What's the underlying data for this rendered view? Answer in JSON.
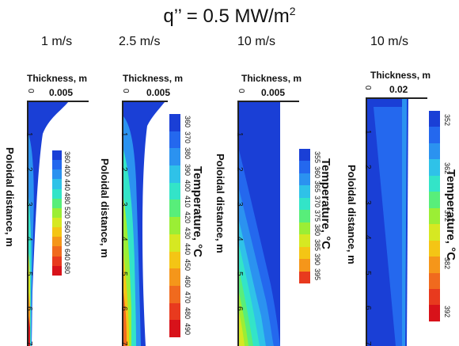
{
  "title": {
    "main": "q’’ = 0.5 MW/m",
    "sup": "2"
  },
  "chart_data": [
    {
      "type": "heatmap",
      "velocity": "1 m/s",
      "xlabel": "Thickness, m",
      "ylabel": "Poloidal distance, m",
      "x_ticks": [
        "0",
        "0.005"
      ],
      "y_ticks": [
        "1",
        "2",
        "3",
        "4",
        "5",
        "6",
        "7"
      ],
      "colorbar": {
        "title": "",
        "ticks": [
          "360",
          "400",
          "440",
          "480",
          "520",
          "560",
          "600",
          "640",
          "680"
        ],
        "range": [
          340,
          700
        ]
      },
      "colors": [
        "#1a3fd6",
        "#2468ee",
        "#2b92f0",
        "#2fc2e8",
        "#33e4c8",
        "#58ee7a",
        "#9bee35",
        "#d6e822",
        "#f4c515",
        "#f5961a",
        "#f06a1e",
        "#e83a1e",
        "#d8121a"
      ]
    },
    {
      "type": "heatmap",
      "velocity": "2.5 m/s",
      "xlabel": "Thickness, m",
      "ylabel": "Poloidal distance, m",
      "x_ticks": [
        "0",
        "0.005"
      ],
      "y_ticks": [
        "1",
        "2",
        "3",
        "4",
        "5",
        "6",
        "7"
      ],
      "colorbar": {
        "title": "Temperature, °C",
        "ticks": [
          "360",
          "370",
          "380",
          "390",
          "400",
          "410",
          "420",
          "430",
          "440",
          "450",
          "460",
          "470",
          "480",
          "490"
        ],
        "range": [
          355,
          495
        ]
      },
      "colors": [
        "#1a3fd6",
        "#2468ee",
        "#2b92f0",
        "#2fc2e8",
        "#33e4c8",
        "#58ee7a",
        "#9bee35",
        "#d6e822",
        "#f4c515",
        "#f5961a",
        "#f06a1e",
        "#e83a1e",
        "#d8121a"
      ]
    },
    {
      "type": "heatmap",
      "velocity": "10 m/s",
      "xlabel": "Thickness, m",
      "ylabel": "Poloidal distance, m",
      "x_ticks": [
        "0",
        "0.005"
      ],
      "y_ticks": [
        "1",
        "2",
        "3",
        "4",
        "5",
        "6"
      ],
      "colorbar": {
        "title": "Temperature, °C",
        "ticks": [
          "355",
          "360",
          "365",
          "370",
          "375",
          "380",
          "385",
          "390",
          "395"
        ],
        "range": [
          352,
          398
        ]
      },
      "colors": [
        "#1a3fd6",
        "#2468ee",
        "#2b92f0",
        "#2fc2e8",
        "#33e4c8",
        "#58ee7a",
        "#9bee35",
        "#d6e822",
        "#f4c515",
        "#f5961a",
        "#e83a1e"
      ]
    },
    {
      "type": "heatmap",
      "velocity": "10 m/s",
      "xlabel": "Thickness, m",
      "ylabel": "Poloidal distance, m",
      "x_ticks": [
        "0",
        "0.02"
      ],
      "y_ticks": [
        "1",
        "2",
        "3",
        "4",
        "5",
        "6",
        "7"
      ],
      "colorbar": {
        "title": "Temperature, °C",
        "ticks": [
          "352",
          "362",
          "372",
          "382",
          "392"
        ],
        "range": [
          350,
          394
        ]
      },
      "colors": [
        "#1a3fd6",
        "#2468ee",
        "#2b92f0",
        "#2fc2e8",
        "#33e4c8",
        "#58ee7a",
        "#9bee35",
        "#d6e822",
        "#f4c515",
        "#f5961a",
        "#f06a1e",
        "#e83a1e",
        "#d8121a"
      ]
    }
  ]
}
